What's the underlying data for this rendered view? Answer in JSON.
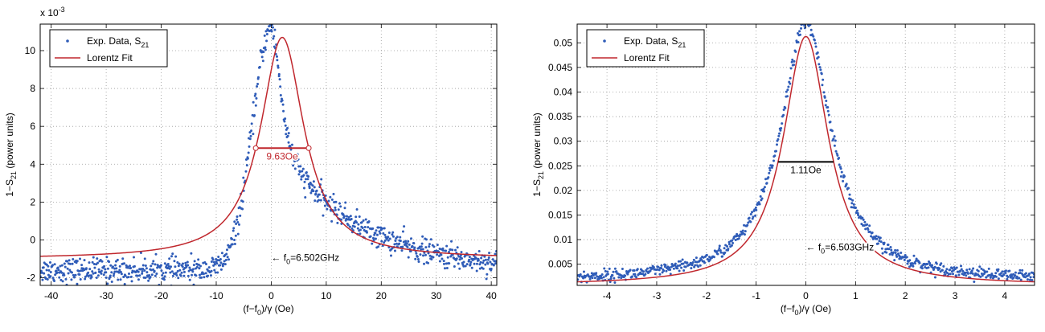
{
  "chart_data": [
    {
      "type": "scatter",
      "title": "",
      "exponent_label": "x 10",
      "exponent_power": "-3",
      "ylabel": "1−S21 (power units)",
      "ylabel_main": "1−S",
      "ylabel_sub": "21",
      "ylabel_rest": " (power units)",
      "xlabel": "(f−f0)/γ (Oe)",
      "xlabel_pre": "(f−f",
      "xlabel_sub": "0",
      "xlabel_post": ")/γ (Oe)",
      "xlim": [
        -42,
        41
      ],
      "ylim": [
        -2.4,
        11.4
      ],
      "x_ticks": [
        -40,
        -30,
        -20,
        -10,
        0,
        10,
        20,
        30,
        40
      ],
      "y_ticks": [
        -2,
        0,
        2,
        4,
        6,
        8,
        10
      ],
      "grid": true,
      "legend_position": "top-left",
      "series": [
        {
          "name": "Exp. Data, S21",
          "legend_main": "Exp. Data, S",
          "legend_sub": "21",
          "marker": "dot",
          "color": "#2f5cb8",
          "model": {
            "x0": 0,
            "peak": 11.2,
            "base": -1.6,
            "left_w": 3.4,
            "right_w": 2.6,
            "tail_amp": 6.6,
            "tail_decay": 14,
            "noise": 0.32
          },
          "n_points": 900
        },
        {
          "name": "Lorentz Fit",
          "legend_main": "Lorentz Fit",
          "legend_sub": "",
          "color": "#c0272d",
          "model": {
            "x0": 2,
            "A": 11.7,
            "hw": 4.815,
            "offset": -1.0
          }
        }
      ],
      "annotations": [
        {
          "text": "9.63Oe",
          "x1": -2.815,
          "x2": 6.815,
          "y": 4.85,
          "color": "#c0272d"
        },
        {
          "text_pre": "← f",
          "text_sub": "0",
          "text_post": "=6.502GHz",
          "x": 0,
          "y": -1.1
        }
      ]
    },
    {
      "type": "scatter",
      "title": "",
      "ylabel": "1−S21 (power units)",
      "ylabel_main": "1−S",
      "ylabel_sub": "21",
      "ylabel_rest": " (power units)",
      "xlabel": "(f−f0)/γ (Oe)",
      "xlabel_pre": "(f−f",
      "xlabel_sub": "0",
      "xlabel_post": ")/γ (Oe)",
      "xlim": [
        -4.6,
        4.6
      ],
      "ylim": [
        0.0007,
        0.0538
      ],
      "x_ticks": [
        -4,
        -3,
        -2,
        -1,
        0,
        1,
        2,
        3,
        4
      ],
      "y_ticks": [
        0.005,
        0.01,
        0.015,
        0.02,
        0.025,
        0.03,
        0.035,
        0.04,
        0.045,
        0.05
      ],
      "y_tick_labels": [
        "0.005",
        "0.01",
        "0.015",
        "0.02",
        "0.025",
        "0.03",
        "0.035",
        "0.04",
        "0.045",
        "0.05"
      ],
      "grid": true,
      "legend_position": "top-left",
      "series": [
        {
          "name": "Exp. Data, S21",
          "legend_main": "Exp. Data, S",
          "legend_sub": "21",
          "marker": "dot",
          "color": "#2f5cb8",
          "model": {
            "x0": 0,
            "A": 0.0525,
            "hw": 0.62,
            "offset": 0.0015,
            "noise": 0.0006
          },
          "n_points": 700
        },
        {
          "name": "Lorentz Fit",
          "legend_main": "Lorentz Fit",
          "legend_sub": "",
          "color": "#c0272d",
          "model": {
            "x0": 0,
            "A": 0.0506,
            "hw": 0.555,
            "offset": 0.0007
          }
        }
      ],
      "annotations": [
        {
          "text": "1.11Oe",
          "x1": -0.555,
          "x2": 0.555,
          "y": 0.0258,
          "color": "#000000"
        },
        {
          "text_pre": "← f",
          "text_sub": "0",
          "text_post": "=6.503GHz",
          "x": 0,
          "y": 0.0078
        }
      ]
    }
  ]
}
